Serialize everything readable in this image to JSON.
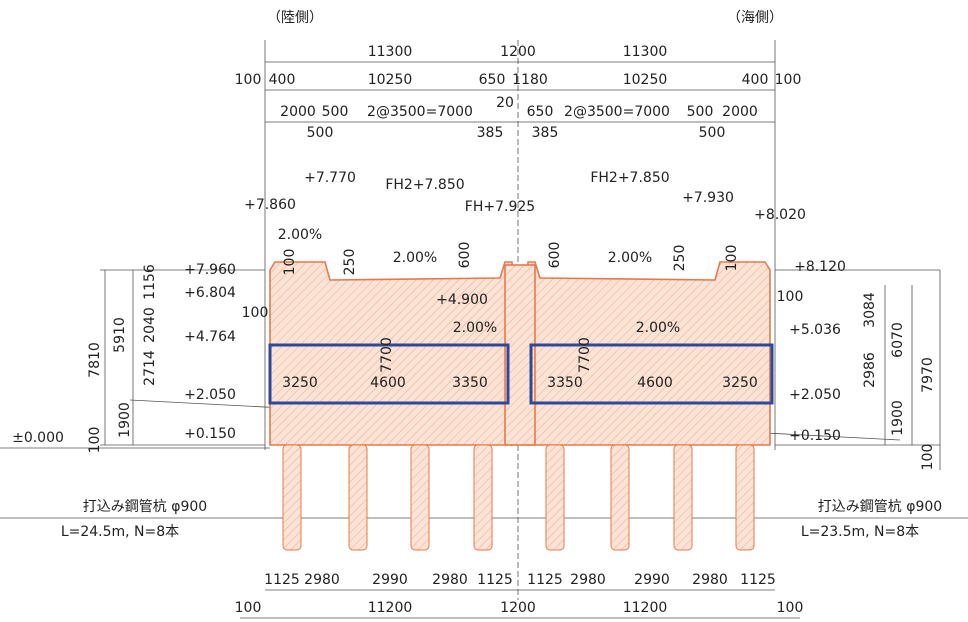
{
  "labels": [
    "（陸側）",
    "（海側）",
    "11300",
    "1200",
    "11300",
    "100",
    "400",
    "10250",
    "650",
    "1180",
    "10250",
    "400",
    "100",
    "20",
    "2000",
    "500",
    "2@3500=7000",
    "650",
    "2@3500=7000",
    "500",
    "2000",
    "500",
    "385",
    "385",
    "500",
    "+7.770",
    "FH2+7.850",
    "FH2+7.850",
    "+7.930",
    "FH+7.925",
    "+7.860",
    "+8.020",
    "2.00%",
    "2.00%",
    "2.00%",
    "2.00%",
    "2.00%",
    "100",
    "250",
    "600",
    "600",
    "250",
    "100",
    "+7.960",
    "+6.804",
    "100",
    "+4.764",
    "+2.050",
    "+0.150",
    "±0.000",
    "1156",
    "2040",
    "2714",
    "5910",
    "7810",
    "1900",
    "100",
    "+8.120",
    "100",
    "+5.036",
    "+2.050",
    "+0.150",
    "3084",
    "2986",
    "6070",
    "7970",
    "1900",
    "100",
    "+4.900",
    "7700",
    "7700",
    "3250",
    "4600",
    "3350",
    "3350",
    "4600",
    "3250",
    "打込み鋼管杭 φ900",
    "L=24.5m, N=8本",
    "打込み鋼管杭 φ900",
    "L=23.5m, N=8本",
    "1125",
    "2980",
    "2990",
    "2980",
    "1125",
    "1125",
    "2980",
    "2990",
    "2980",
    "1125",
    "100",
    "11200",
    "1200",
    "11200",
    "100"
  ]
}
